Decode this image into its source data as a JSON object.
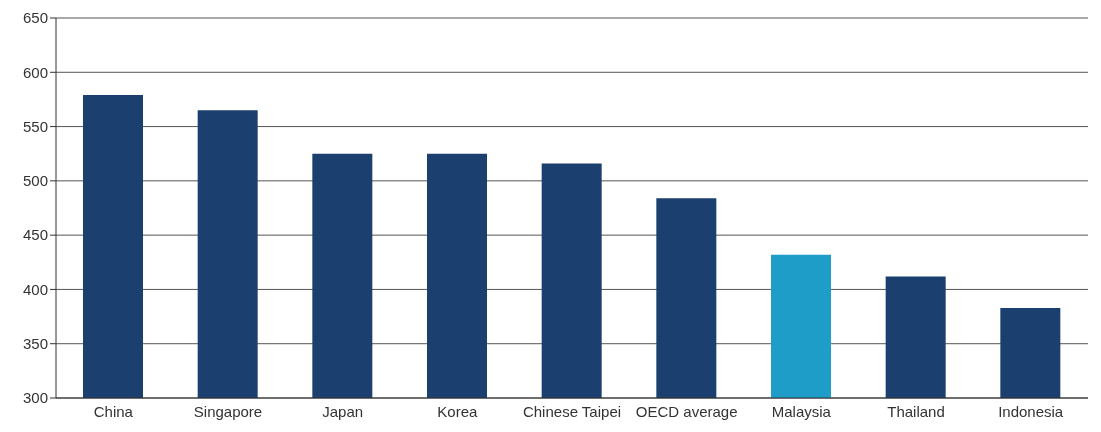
{
  "chart_data": {
    "type": "bar",
    "categories": [
      "China",
      "Singapore",
      "Japan",
      "Korea",
      "Chinese Taipei",
      "OECD average",
      "Malaysia",
      "Thailand",
      "Indonesia"
    ],
    "values": [
      579,
      565,
      525,
      525,
      516,
      484,
      432,
      412,
      383
    ],
    "colors": [
      "#1b3f6e",
      "#1b3f6e",
      "#1b3f6e",
      "#1b3f6e",
      "#1b3f6e",
      "#1b3f6e",
      "#1f9dc9",
      "#1b3f6e",
      "#1b3f6e"
    ],
    "ylim": [
      300,
      650
    ],
    "yticks": [
      300,
      350,
      400,
      450,
      500,
      550,
      600,
      650
    ],
    "grid": "y"
  }
}
